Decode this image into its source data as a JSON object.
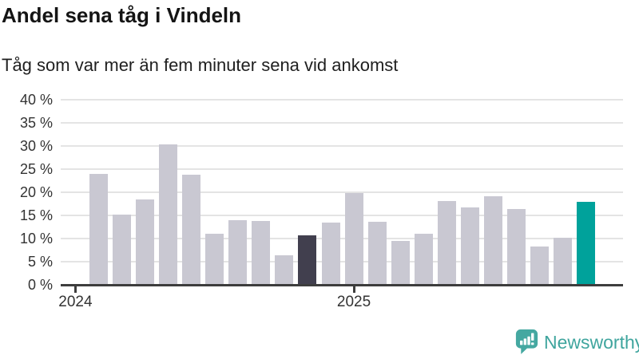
{
  "header": {
    "title": "Andel sena tåg i Vindeln",
    "subtitle": "Tåg som var mer än fem minuter sena vid ankomst"
  },
  "footer": {
    "brand": "Newsworthy"
  },
  "colors": {
    "bar_default": "#c9c8d2",
    "bar_dark_highlight": "#413f4e",
    "bar_accent_teal": "#00a29b",
    "gridline": "#e4e4e4",
    "axis": "#3d3d3d",
    "tick_text": "#333333",
    "title_text": "#141414",
    "logo_teal": "#3fa59e"
  },
  "chart_data": {
    "type": "bar",
    "title": "Andel sena tåg i Vindeln",
    "subtitle": "Tåg som var mer än fem minuter sena vid ankomst",
    "unit": "%",
    "values": [
      24.0,
      15.1,
      18.5,
      30.3,
      23.8,
      11.0,
      14.0,
      13.8,
      6.3,
      10.7,
      13.5,
      19.8,
      13.6,
      9.4,
      11.0,
      18.1,
      16.7,
      19.1,
      16.3,
      8.2,
      10.1,
      18.0
    ],
    "dark_bar_index": 9,
    "accent_bar_index": 21,
    "ylim": [
      0,
      40
    ],
    "ytick_step": 5,
    "ytick_labels": [
      "0 %",
      "5 %",
      "10 %",
      "15 %",
      "20 %",
      "25 %",
      "30 %",
      "35 %",
      "40 %"
    ],
    "xticks": [
      {
        "label": "2024",
        "bar_center_index": -1
      },
      {
        "label": "2025",
        "bar_center_index": 11
      }
    ],
    "grid": "horizontal",
    "legend": "none"
  }
}
